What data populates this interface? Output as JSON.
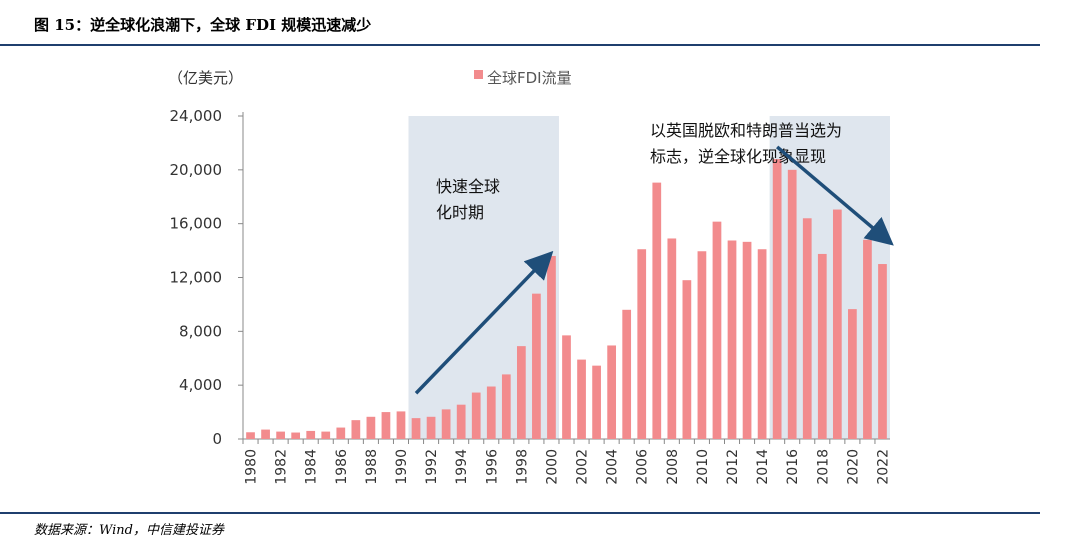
{
  "title": "图 15：逆全球化浪潮下，全球 FDI 规模迅速减少",
  "source": "数据来源：Wind，中信建投证券",
  "colors": {
    "bar": "#f28b8d",
    "arrow": "#1f4e79",
    "shade": "#dfe6ee",
    "rule": "#1f3f6e"
  },
  "chart_data": {
    "type": "bar",
    "unit_label": "（亿美元）",
    "series": [
      {
        "name": "全球FDI流量",
        "color": "#f28b8d"
      }
    ],
    "categories": [
      1980,
      1981,
      1982,
      1983,
      1984,
      1985,
      1986,
      1987,
      1988,
      1989,
      1990,
      1991,
      1992,
      1993,
      1994,
      1995,
      1996,
      1997,
      1998,
      1999,
      2000,
      2001,
      2002,
      2003,
      2004,
      2005,
      2006,
      2007,
      2008,
      2009,
      2010,
      2011,
      2012,
      2013,
      2014,
      2015,
      2016,
      2017,
      2018,
      2019,
      2020,
      2021,
      2022
    ],
    "values": [
      500,
      700,
      550,
      480,
      600,
      550,
      850,
      1400,
      1650,
      2000,
      2050,
      1550,
      1650,
      2200,
      2550,
      3450,
      3900,
      4800,
      6900,
      10800,
      13600,
      7700,
      5900,
      5450,
      6950,
      9600,
      14100,
      19050,
      14900,
      11800,
      13950,
      16150,
      14750,
      14650,
      14100,
      20800,
      20000,
      16400,
      13750,
      17050,
      9650,
      14800,
      13000
    ],
    "ylim": [
      0,
      24000
    ],
    "yticks": [
      "0",
      "4,000",
      "8,000",
      "12,000",
      "16,000",
      "20,000",
      "24,000"
    ],
    "ytick_values": [
      0,
      4000,
      8000,
      12000,
      16000,
      20000,
      24000
    ],
    "xtick_labels": [
      "1980",
      "1982",
      "1984",
      "1986",
      "1988",
      "1990",
      "1992",
      "1994",
      "1996",
      "1998",
      "2000",
      "2002",
      "2004",
      "2006",
      "2008",
      "2010",
      "2012",
      "2014",
      "2016",
      "2018",
      "2020",
      "2022"
    ],
    "shaded_periods": [
      {
        "from": 1991,
        "to": 2000
      },
      {
        "from": 2015,
        "to": 2022
      }
    ],
    "annotations": [
      {
        "lines": [
          "快速全球",
          "化时期"
        ]
      },
      {
        "lines": [
          "以英国脱欧和特朗普当选为",
          "标志，逆全球化现象显现"
        ]
      }
    ],
    "arrows": [
      {
        "from": [
          1991,
          3400
        ],
        "to": [
          1999.8,
          13600
        ]
      },
      {
        "from": [
          2015,
          21700
        ],
        "to": [
          2022.4,
          14700
        ]
      }
    ]
  }
}
